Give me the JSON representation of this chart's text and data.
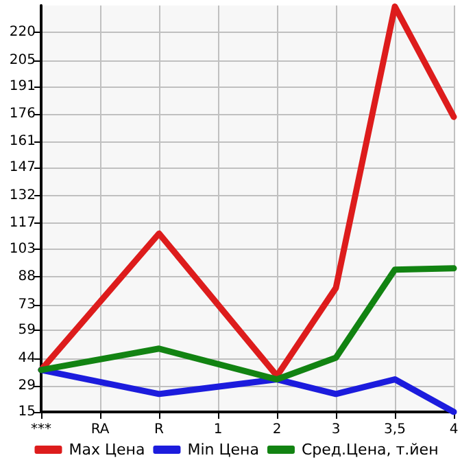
{
  "chart_data": {
    "type": "line",
    "categories": [
      "***",
      "RA",
      "R",
      "1",
      "2",
      "3",
      "3,5",
      "4"
    ],
    "series": [
      {
        "name": "Max Цена",
        "color": "#dd1c1c",
        "values": [
          37.7,
          null,
          111.4,
          null,
          34.5,
          82,
          234,
          174.4
        ]
      },
      {
        "name": "Min Цена",
        "color": "#1c1cdd",
        "values": [
          37.7,
          null,
          24.7,
          null,
          32.6,
          24.7,
          32.6,
          15
        ]
      },
      {
        "name": "Сред.Цена, т.йен",
        "color": "#128312",
        "values": [
          37.7,
          null,
          49.2,
          null,
          32.6,
          44.3,
          91.9,
          92.6
        ]
      }
    ],
    "ylim": [
      15,
      234.6
    ],
    "yticks": [
      15,
      29,
      44,
      59,
      73,
      88,
      103,
      117,
      132,
      147,
      161,
      176,
      191,
      205,
      220
    ],
    "grid": true,
    "legend": "bottom",
    "marker": "none",
    "line_style": "solid"
  }
}
